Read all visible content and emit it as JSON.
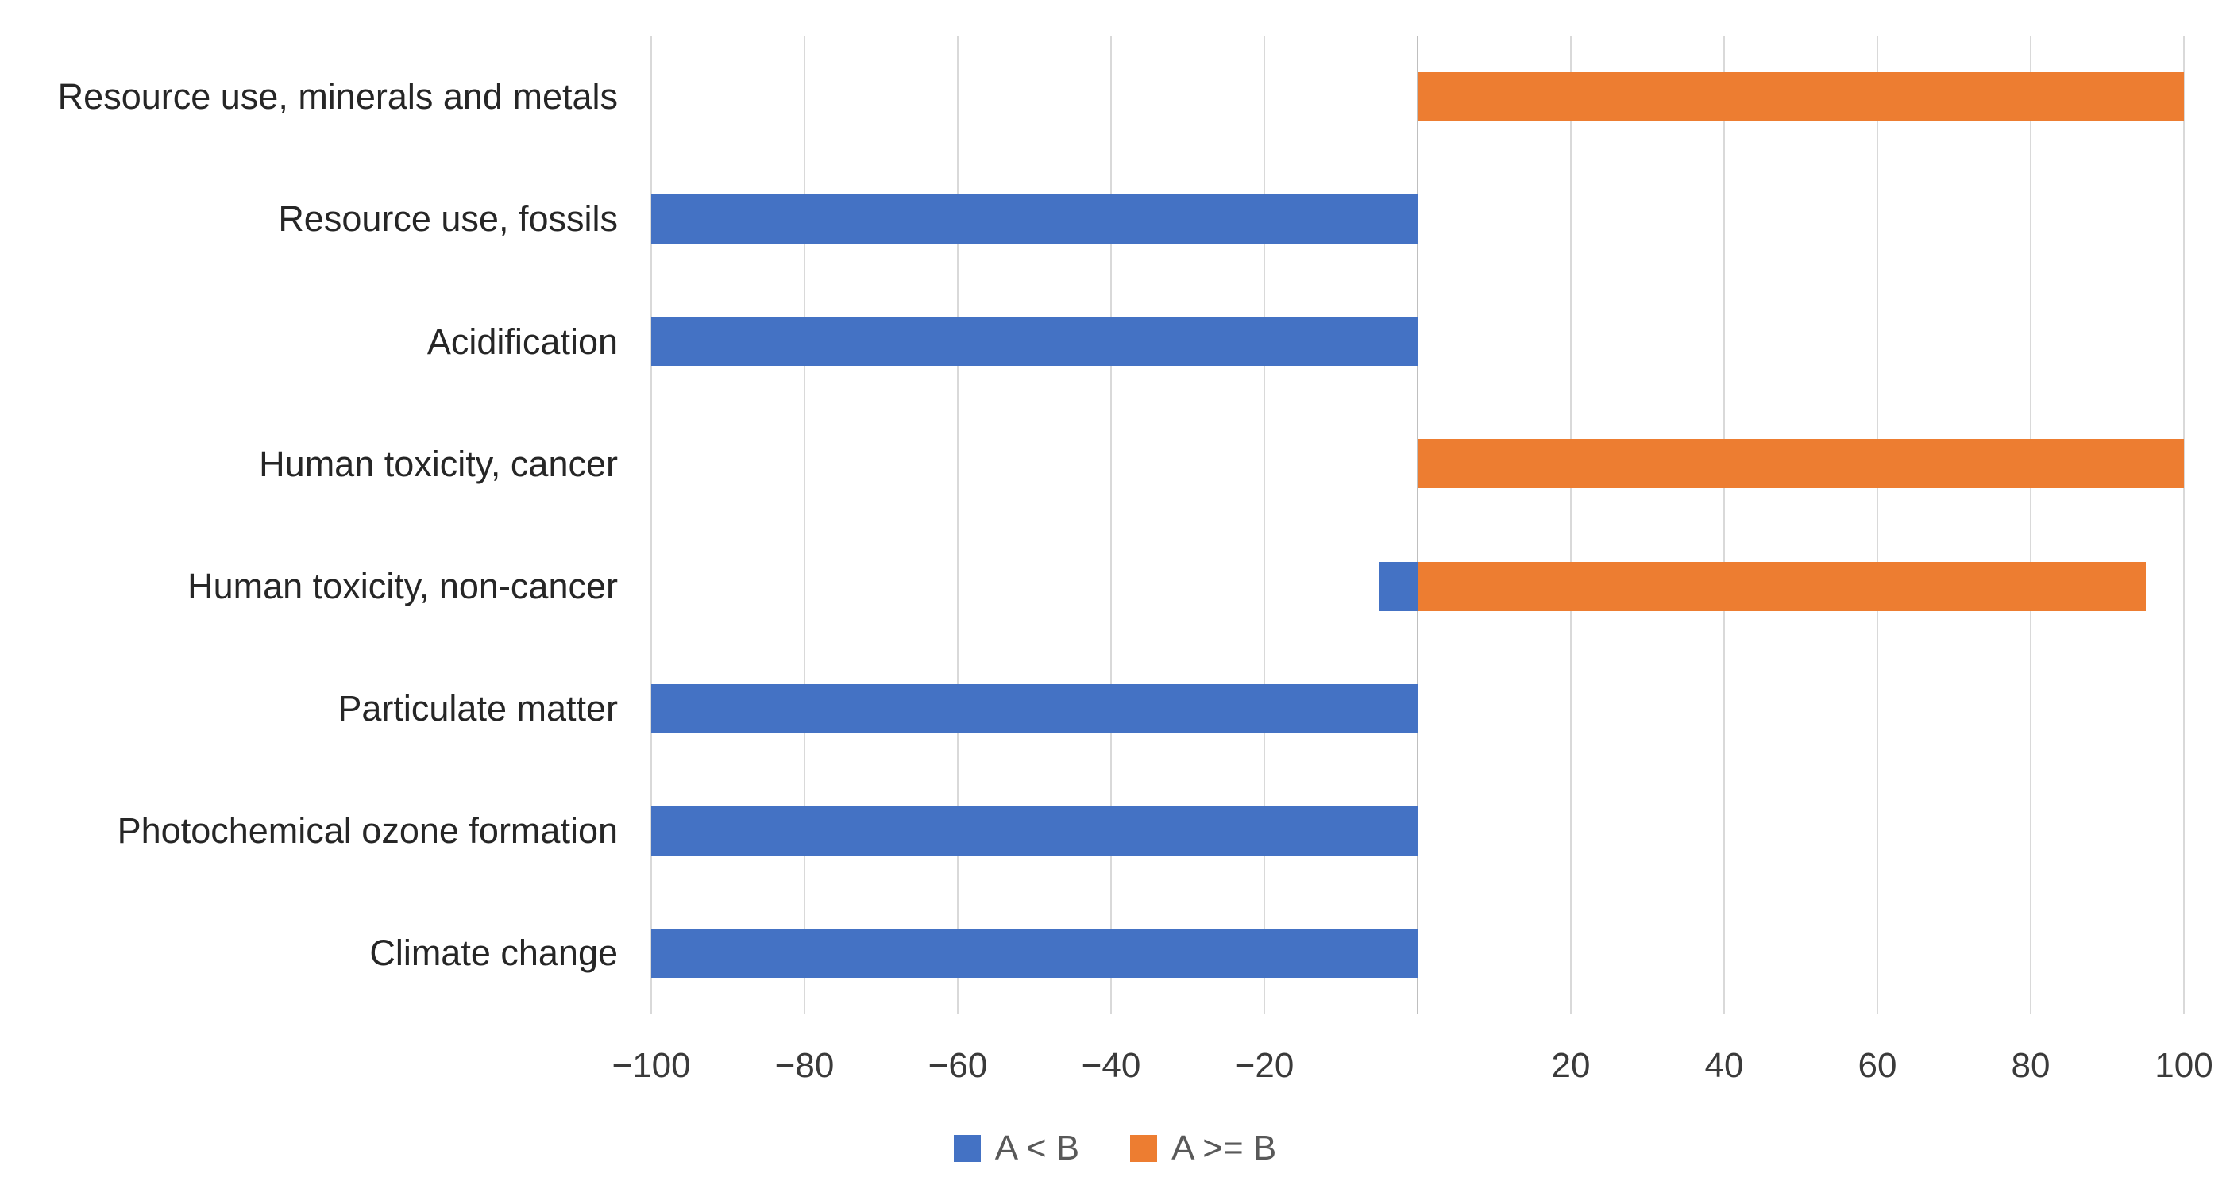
{
  "chart_data": {
    "type": "bar",
    "orientation": "horizontal",
    "diverging": true,
    "title": "",
    "xlabel": "",
    "ylabel": "",
    "categories": [
      "Resource use, minerals and metals",
      "Resource use, fossils",
      "Acidification",
      "Human toxicity, cancer",
      "Human toxicity, non-cancer",
      "Particulate matter",
      "Photochemical ozone formation",
      "Climate change"
    ],
    "series": [
      {
        "name": "A < B",
        "color": "#4472C4",
        "values": [
          0,
          -100,
          -100,
          0,
          -5,
          -100,
          -100,
          -100
        ]
      },
      {
        "name": "A >= B",
        "color": "#ED7D31",
        "values": [
          100,
          0,
          0,
          100,
          95,
          0,
          0,
          0
        ]
      }
    ],
    "xlim": [
      -100,
      100
    ],
    "xticks": [
      {
        "v": -100,
        "label": "−100"
      },
      {
        "v": -80,
        "label": "−80"
      },
      {
        "v": -60,
        "label": "−60"
      },
      {
        "v": -40,
        "label": "−40"
      },
      {
        "v": -20,
        "label": "−20"
      },
      {
        "v": 0,
        "label": ""
      },
      {
        "v": 20,
        "label": "20"
      },
      {
        "v": 40,
        "label": "40"
      },
      {
        "v": 60,
        "label": "60"
      },
      {
        "v": 80,
        "label": "80"
      },
      {
        "v": 100,
        "label": "100"
      }
    ],
    "grid": true,
    "legend_position": "bottom",
    "colors": {
      "gridline": "#D9D9D9",
      "zero_line": "#BFBFBF",
      "category_text": "#262626",
      "tick_text": "#3A3A3A",
      "legend_text": "#595959",
      "background": "#FFFFFF"
    }
  }
}
